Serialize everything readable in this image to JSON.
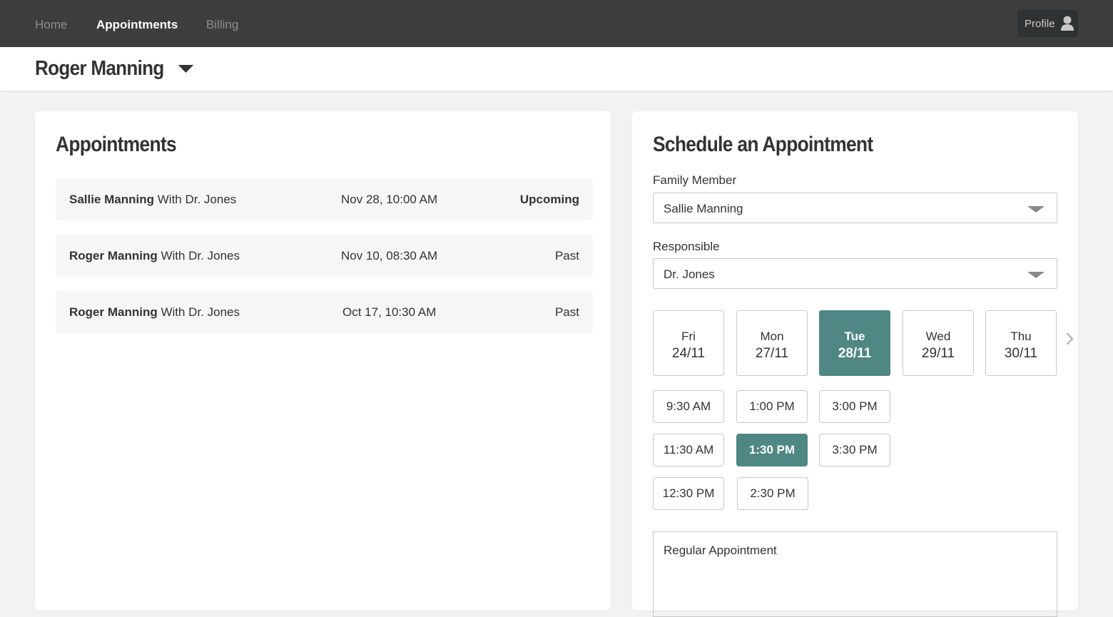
{
  "nav": {
    "items": [
      {
        "label": "Home"
      },
      {
        "label": "Appointments"
      },
      {
        "label": "Billing"
      }
    ],
    "active": "Appointments",
    "profile_label": "Profile"
  },
  "patient": {
    "name": "Roger Manning"
  },
  "appointments": {
    "title": "Appointments",
    "rows": [
      {
        "patient": "Sallie Manning",
        "with": "With Dr. Jones",
        "date": "Nov 28, 10:00 AM",
        "status": "Upcoming"
      },
      {
        "patient": "Roger Manning",
        "with": "With Dr. Jones",
        "date": "Nov 10, 08:30 AM",
        "status": "Past"
      },
      {
        "patient": "Roger Manning",
        "with": "With Dr. Jones",
        "date": "Oct 17, 10:30 AM",
        "status": "Past"
      }
    ]
  },
  "schedule": {
    "title": "Schedule an Appointment",
    "family_label": "Family Member",
    "family_value": "Sallie Manning",
    "responsible_label": "Responsible",
    "responsible_value": "Dr. Jones",
    "days": [
      {
        "dow": "Fri",
        "date": "24/11"
      },
      {
        "dow": "Mon",
        "date": "27/11"
      },
      {
        "dow": "Tue",
        "date": "28/11"
      },
      {
        "dow": "Wed",
        "date": "29/11"
      },
      {
        "dow": "Thu",
        "date": "30/11"
      }
    ],
    "selected_day": "Tue 28/11",
    "times": [
      "9:30 AM",
      "11:30 AM",
      "12:30 PM",
      "1:00 PM",
      "1:30 PM",
      "2:30 PM",
      "3:00 PM",
      "3:30 PM"
    ],
    "selected_time": "1:30 PM",
    "note": "Regular Appointment"
  },
  "colors": {
    "accent": "#4e8784",
    "topbar": "#3d3d3d"
  }
}
